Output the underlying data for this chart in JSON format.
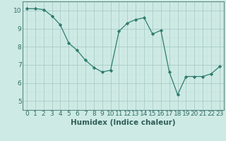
{
  "x": [
    0,
    1,
    2,
    3,
    4,
    5,
    6,
    7,
    8,
    9,
    10,
    11,
    12,
    13,
    14,
    15,
    16,
    17,
    18,
    19,
    20,
    21,
    22,
    23
  ],
  "y": [
    10.1,
    10.1,
    10.05,
    9.7,
    9.2,
    8.2,
    7.8,
    7.25,
    6.85,
    6.6,
    6.7,
    8.85,
    9.3,
    9.5,
    9.6,
    8.7,
    8.9,
    6.6,
    5.35,
    6.35,
    6.35,
    6.35,
    6.5,
    6.9
  ],
  "xlim": [
    -0.5,
    23.5
  ],
  "ylim": [
    4.9,
    10.5
  ],
  "xlabel": "Humidex (Indice chaleur)",
  "xticks": [
    0,
    1,
    2,
    3,
    4,
    5,
    6,
    7,
    8,
    9,
    10,
    11,
    12,
    13,
    14,
    15,
    16,
    17,
    18,
    19,
    20,
    21,
    22,
    23
  ],
  "yticks": [
    5,
    6,
    7,
    8,
    9,
    10
  ],
  "line_color": "#2e7d6e",
  "marker": "D",
  "marker_size": 2.2,
  "bg_color": "#ceeae5",
  "grid_color_major": "#aaccc6",
  "grid_color_minor": "#c4e4de",
  "xlabel_fontsize": 7.5,
  "tick_fontsize": 6.5,
  "spine_color": "#5a8a82"
}
